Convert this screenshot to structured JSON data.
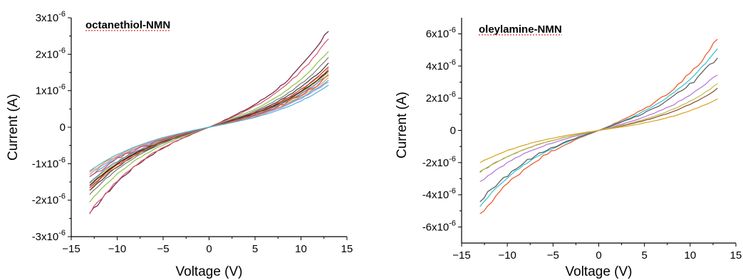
{
  "chart_data": [
    {
      "type": "line",
      "title": "octanethiol-NMN",
      "xlabel": "Voltage (V)",
      "ylabel": "Current (A)",
      "xlim": [
        -15,
        15
      ],
      "ylim": [
        -3e-06,
        3e-06
      ],
      "x_ticks": [
        -15,
        -10,
        -5,
        0,
        5,
        10,
        15
      ],
      "x_tick_labels": [
        "−15",
        "−10",
        "−5",
        "0",
        "5",
        "10",
        "15"
      ],
      "y_ticks": [
        -3e-06,
        -2e-06,
        -1e-06,
        0,
        1e-06,
        2e-06,
        3e-06
      ],
      "y_tick_labels": [
        {
          "mantissa": "-3x10",
          "exp": "-6"
        },
        {
          "mantissa": "-2x10",
          "exp": "-6"
        },
        {
          "mantissa": "-1x10",
          "exp": "-6"
        },
        {
          "mantissa": "0",
          "exp": ""
        },
        {
          "mantissa": "1x10",
          "exp": "-6"
        },
        {
          "mantissa": "2x10",
          "exp": "-6"
        },
        {
          "mantissa": "3x10",
          "exp": "-6"
        }
      ],
      "x_range": [
        -13,
        13
      ],
      "series": [
        {
          "color": "#6a1f3f",
          "i_neg": -2.4e-06,
          "i_pos": 2.65e-06,
          "noise": 5e-08
        },
        {
          "color": "#d9536b",
          "i_neg": -2.35e-06,
          "i_pos": 2.45e-06,
          "noise": 4e-08
        },
        {
          "color": "#8fc14a",
          "i_neg": -2.05e-06,
          "i_pos": 2.1e-06,
          "noise": 2e-08
        },
        {
          "color": "#7a7a7a",
          "i_neg": -1.85e-06,
          "i_pos": 1.9e-06,
          "noise": 2e-08
        },
        {
          "color": "#3a3a3a",
          "i_neg": -1.75e-06,
          "i_pos": 1.75e-06,
          "noise": 2e-08
        },
        {
          "color": "#e07b39",
          "i_neg": -1.7e-06,
          "i_pos": 1.6e-06,
          "noise": 3e-08
        },
        {
          "color": "#cc2a2a",
          "i_neg": -1.65e-06,
          "i_pos": 1.65e-06,
          "noise": 2e-08
        },
        {
          "color": "#111111",
          "i_neg": -1.6e-06,
          "i_pos": 1.55e-06,
          "noise": 1e-08
        },
        {
          "color": "#b7b33a",
          "i_neg": -1.55e-06,
          "i_pos": 1.5e-06,
          "noise": 2e-08
        },
        {
          "color": "#5b7bd5",
          "i_neg": -1.5e-06,
          "i_pos": 1.45e-06,
          "noise": 2e-08
        },
        {
          "color": "#2eb8c6",
          "i_neg": -1.35e-06,
          "i_pos": 1.3e-06,
          "noise": 2e-08
        },
        {
          "color": "#c08bd8",
          "i_neg": -1.3e-06,
          "i_pos": 1.25e-06,
          "noise": 2e-08
        },
        {
          "color": "#f0a040",
          "i_neg": -1.25e-06,
          "i_pos": 1.35e-06,
          "noise": 2e-08
        },
        {
          "color": "#e24a4a",
          "i_neg": -1.4e-06,
          "i_pos": 1.4e-06,
          "noise": 5e-08
        },
        {
          "color": "#4ab0d6",
          "i_neg": -1.2e-06,
          "i_pos": 1.15e-06,
          "noise": 1e-08
        }
      ]
    },
    {
      "type": "line",
      "title": "oleylamine-NMN",
      "xlabel": "Voltage (V)",
      "ylabel": "Current (A)",
      "xlim": [
        -15,
        15
      ],
      "ylim": [
        -7e-06,
        7e-06
      ],
      "x_ticks": [
        -15,
        -10,
        -5,
        0,
        5,
        10,
        15
      ],
      "x_tick_labels": [
        "−15",
        "−10",
        "−5",
        "0",
        "5",
        "10",
        "15"
      ],
      "y_ticks": [
        -6e-06,
        -4e-06,
        -2e-06,
        0,
        2e-06,
        4e-06,
        6e-06
      ],
      "y_tick_labels": [
        {
          "mantissa": "-6x10",
          "exp": "-6"
        },
        {
          "mantissa": "-4x10",
          "exp": "-6"
        },
        {
          "mantissa": "-2x10",
          "exp": "-6"
        },
        {
          "mantissa": "0",
          "exp": ""
        },
        {
          "mantissa": "2x10",
          "exp": "-6"
        },
        {
          "mantissa": "4x10",
          "exp": "-6"
        },
        {
          "mantissa": "6x10",
          "exp": "-6"
        }
      ],
      "x_range": [
        -13,
        13
      ],
      "series": [
        {
          "color": "#f0501e",
          "i_neg": -5.3e-06,
          "i_pos": 5.7e-06,
          "noise": 1.5e-07
        },
        {
          "color": "#2ec4d4",
          "i_neg": -4.7e-06,
          "i_pos": 5.1e-06,
          "noise": 5e-08
        },
        {
          "color": "#555555",
          "i_neg": -4.4e-06,
          "i_pos": 4.6e-06,
          "noise": 1.5e-07
        },
        {
          "color": "#b572d9",
          "i_neg": -3.2e-06,
          "i_pos": 3.5e-06,
          "noise": 6e-08
        },
        {
          "color": "#8a4a2a",
          "i_neg": -2.6e-06,
          "i_pos": 2.6e-06,
          "noise": 3e-08
        },
        {
          "color": "#b5c04a",
          "i_neg": -2.6e-06,
          "i_pos": 2.9e-06,
          "noise": 3e-08
        },
        {
          "color": "#d9a020",
          "i_neg": -2e-06,
          "i_pos": 1.95e-06,
          "noise": 2e-08
        }
      ]
    }
  ]
}
